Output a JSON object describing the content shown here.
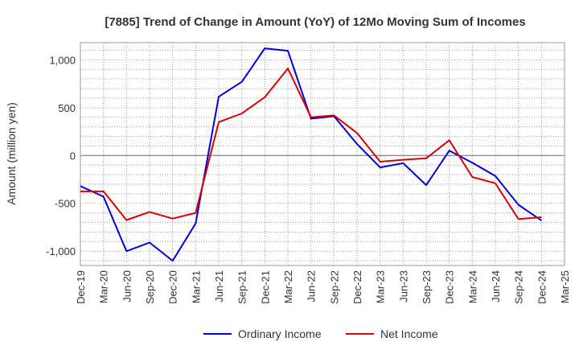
{
  "chart_data": {
    "type": "line",
    "title": "[7885]  Trend of Change in Amount (YoY) of 12Mo Moving Sum of Incomes",
    "xlabel": "",
    "ylabel": "Amount (million yen)",
    "ylim": [
      -1150,
      1180
    ],
    "yticks": [
      1000,
      500,
      0,
      -500,
      -1000
    ],
    "ytick_labels": [
      "1,000",
      "500",
      "0",
      "-500",
      "-1,000"
    ],
    "categories": [
      "Dec-19",
      "Mar-20",
      "Jun-20",
      "Sep-20",
      "Dec-20",
      "Mar-21",
      "Jun-21",
      "Sep-21",
      "Dec-21",
      "Mar-22",
      "Jun-22",
      "Sep-22",
      "Dec-22",
      "Mar-23",
      "Jun-23",
      "Sep-23",
      "Dec-23",
      "Mar-24",
      "Jun-24",
      "Sep-24",
      "Dec-24",
      "Mar-25"
    ],
    "grid": true,
    "legend_position": "bottom-center",
    "series": [
      {
        "name": "Ordinary Income",
        "color": "#0000dd",
        "values": [
          -320,
          -430,
          -1000,
          -910,
          -1100,
          -710,
          615,
          770,
          1120,
          1095,
          385,
          410,
          120,
          -125,
          -80,
          -310,
          50,
          -75,
          -215,
          -515,
          -680,
          null
        ]
      },
      {
        "name": "Net Income",
        "color": "#dd0000",
        "values": [
          -375,
          -375,
          -675,
          -590,
          -660,
          -600,
          350,
          440,
          610,
          910,
          400,
          420,
          235,
          -65,
          -45,
          -30,
          160,
          -225,
          -290,
          -665,
          -645,
          null
        ]
      }
    ]
  }
}
